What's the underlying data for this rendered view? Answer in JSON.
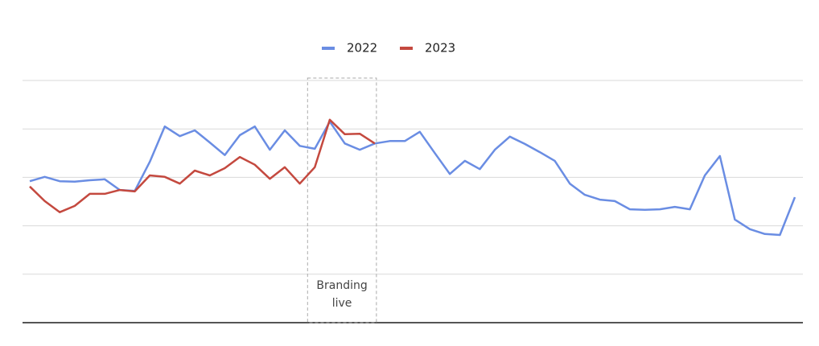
{
  "chart_data": {
    "type": "line",
    "categories": [
      null,
      null,
      null,
      null,
      null,
      null,
      null,
      null,
      null,
      null,
      null,
      null,
      null,
      null,
      null,
      null,
      null,
      null,
      null,
      null,
      null,
      null,
      null,
      null,
      null,
      null,
      null,
      null,
      null,
      null,
      null,
      null,
      null,
      null,
      null,
      null,
      null,
      null,
      null,
      null,
      null,
      null,
      null,
      null,
      null,
      null,
      null,
      null,
      null,
      null,
      null,
      null
    ],
    "series": [
      {
        "name": "2022",
        "color": "#6a8de3",
        "values": [
          2.92,
          3.01,
          2.92,
          2.91,
          2.94,
          2.96,
          2.74,
          2.72,
          3.32,
          4.05,
          3.85,
          3.97,
          3.72,
          3.46,
          3.87,
          4.05,
          3.57,
          3.97,
          3.65,
          3.59,
          4.15,
          3.7,
          3.57,
          3.7,
          3.75,
          3.75,
          3.94,
          3.5,
          3.07,
          3.34,
          3.17,
          3.57,
          3.84,
          3.69,
          3.52,
          3.34,
          2.87,
          2.64,
          2.54,
          2.51,
          2.34,
          2.33,
          2.34,
          2.39,
          2.34,
          3.04,
          3.44,
          2.13,
          1.93,
          1.83,
          1.81,
          2.59
        ]
      },
      {
        "name": "2023",
        "color": "#c4493f",
        "values": [
          2.81,
          2.51,
          2.28,
          2.41,
          2.66,
          2.66,
          2.74,
          2.71,
          3.04,
          3.01,
          2.87,
          3.14,
          3.04,
          3.19,
          3.42,
          3.26,
          2.97,
          3.21,
          2.87,
          3.21,
          4.19,
          3.89,
          3.9,
          3.7,
          null,
          null,
          null,
          null,
          null,
          null,
          null,
          null,
          null,
          null,
          null,
          null,
          null,
          null,
          null,
          null,
          null,
          null,
          null,
          null,
          null,
          null,
          null,
          null,
          null,
          null,
          null,
          null
        ]
      }
    ],
    "ylim": [
      0,
      5
    ],
    "yticks": [
      1,
      2,
      3,
      4,
      5
    ],
    "grid": true,
    "legend": "top",
    "annotation": {
      "lines": [
        "Branding",
        "live"
      ],
      "start": 19,
      "end": 23
    }
  }
}
